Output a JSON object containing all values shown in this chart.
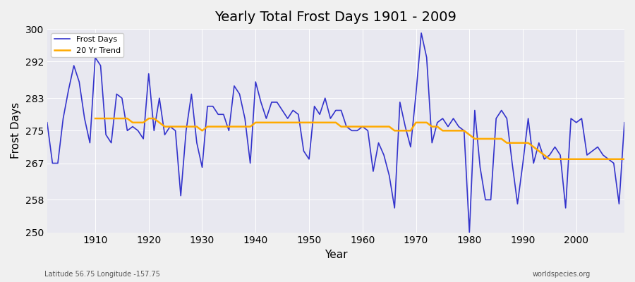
{
  "title": "Yearly Total Frost Days 1901 - 2009",
  "xlabel": "Year",
  "ylabel": "Frost Days",
  "subtitle": "Latitude 56.75 Longitude -157.75",
  "watermark": "worldspecies.org",
  "ylim": [
    250,
    300
  ],
  "yticks": [
    250,
    258,
    267,
    275,
    283,
    292,
    300
  ],
  "bg_color": "#e8e8f0",
  "line_color": "#3333cc",
  "trend_color": "#ffaa00",
  "years": [
    1901,
    1902,
    1903,
    1904,
    1905,
    1906,
    1907,
    1908,
    1909,
    1910,
    1911,
    1912,
    1913,
    1914,
    1915,
    1916,
    1917,
    1918,
    1919,
    1920,
    1921,
    1922,
    1923,
    1924,
    1925,
    1926,
    1927,
    1928,
    1929,
    1930,
    1931,
    1932,
    1933,
    1934,
    1935,
    1936,
    1937,
    1938,
    1939,
    1940,
    1941,
    1942,
    1943,
    1944,
    1945,
    1946,
    1947,
    1948,
    1949,
    1950,
    1951,
    1952,
    1953,
    1954,
    1955,
    1956,
    1957,
    1958,
    1959,
    1960,
    1961,
    1962,
    1963,
    1964,
    1965,
    1966,
    1967,
    1968,
    1969,
    1970,
    1971,
    1972,
    1973,
    1974,
    1975,
    1976,
    1977,
    1978,
    1979,
    1980,
    1981,
    1982,
    1983,
    1984,
    1985,
    1986,
    1987,
    1988,
    1989,
    1990,
    1991,
    1992,
    1993,
    1994,
    1995,
    1996,
    1997,
    1998,
    1999,
    2000,
    2001,
    2002,
    2003,
    2004,
    2005,
    2006,
    2007,
    2008,
    2009
  ],
  "frost_days": [
    277,
    267,
    267,
    278,
    285,
    291,
    287,
    278,
    272,
    293,
    291,
    274,
    272,
    284,
    283,
    275,
    276,
    275,
    273,
    289,
    275,
    283,
    274,
    276,
    275,
    259,
    275,
    284,
    272,
    266,
    281,
    281,
    279,
    279,
    275,
    286,
    284,
    278,
    267,
    287,
    282,
    278,
    282,
    282,
    280,
    278,
    280,
    279,
    270,
    268,
    281,
    279,
    283,
    278,
    280,
    280,
    276,
    275,
    275,
    276,
    275,
    265,
    272,
    269,
    264,
    256,
    282,
    276,
    271,
    284,
    299,
    293,
    272,
    277,
    278,
    276,
    278,
    276,
    275,
    250,
    280,
    266,
    258,
    258,
    278,
    280,
    278,
    267,
    257,
    267,
    278,
    267,
    272,
    268,
    269,
    271,
    269,
    256,
    278,
    277,
    278,
    269,
    270,
    271,
    269,
    268,
    267,
    257,
    277
  ],
  "trend_years": [
    1910,
    1911,
    1912,
    1913,
    1914,
    1915,
    1916,
    1917,
    1918,
    1919,
    1920,
    1921,
    1922,
    1923,
    1924,
    1925,
    1926,
    1927,
    1928,
    1929,
    1930,
    1931,
    1932,
    1933,
    1934,
    1935,
    1936,
    1937,
    1938,
    1939,
    1940,
    1941,
    1942,
    1943,
    1944,
    1945,
    1946,
    1947,
    1948,
    1949,
    1950,
    1951,
    1952,
    1953,
    1954,
    1955,
    1956,
    1957,
    1958,
    1959,
    1960,
    1961,
    1962,
    1963,
    1964,
    1965,
    1966,
    1967,
    1968,
    1969,
    1970,
    1971,
    1972,
    1973,
    1974,
    1975,
    1976,
    1977,
    1978,
    1979,
    1980,
    1981,
    1982,
    1983,
    1984,
    1985,
    1986,
    1987,
    1988,
    1989,
    1990,
    1991,
    1992,
    1993,
    1994,
    1995,
    1996,
    1997,
    1998,
    1999,
    2000,
    2001,
    2002,
    2003,
    2004,
    2005,
    2006,
    2007,
    2008,
    2009
  ],
  "trend_values": [
    278,
    278,
    278,
    278,
    278,
    278,
    278,
    277,
    277,
    277,
    278,
    278,
    277,
    276,
    276,
    276,
    276,
    276,
    276,
    276,
    275,
    276,
    276,
    276,
    276,
    276,
    276,
    276,
    276,
    276,
    277,
    277,
    277,
    277,
    277,
    277,
    277,
    277,
    277,
    277,
    277,
    277,
    277,
    277,
    277,
    277,
    276,
    276,
    276,
    276,
    276,
    276,
    276,
    276,
    276,
    276,
    275,
    275,
    275,
    275,
    277,
    277,
    277,
    276,
    276,
    275,
    275,
    275,
    275,
    275,
    274,
    273,
    273,
    273,
    273,
    273,
    273,
    272,
    272,
    272,
    272,
    272,
    271,
    270,
    269,
    268,
    268,
    268,
    268,
    268,
    268,
    268,
    268,
    268,
    268,
    268,
    268,
    268,
    268,
    268
  ]
}
